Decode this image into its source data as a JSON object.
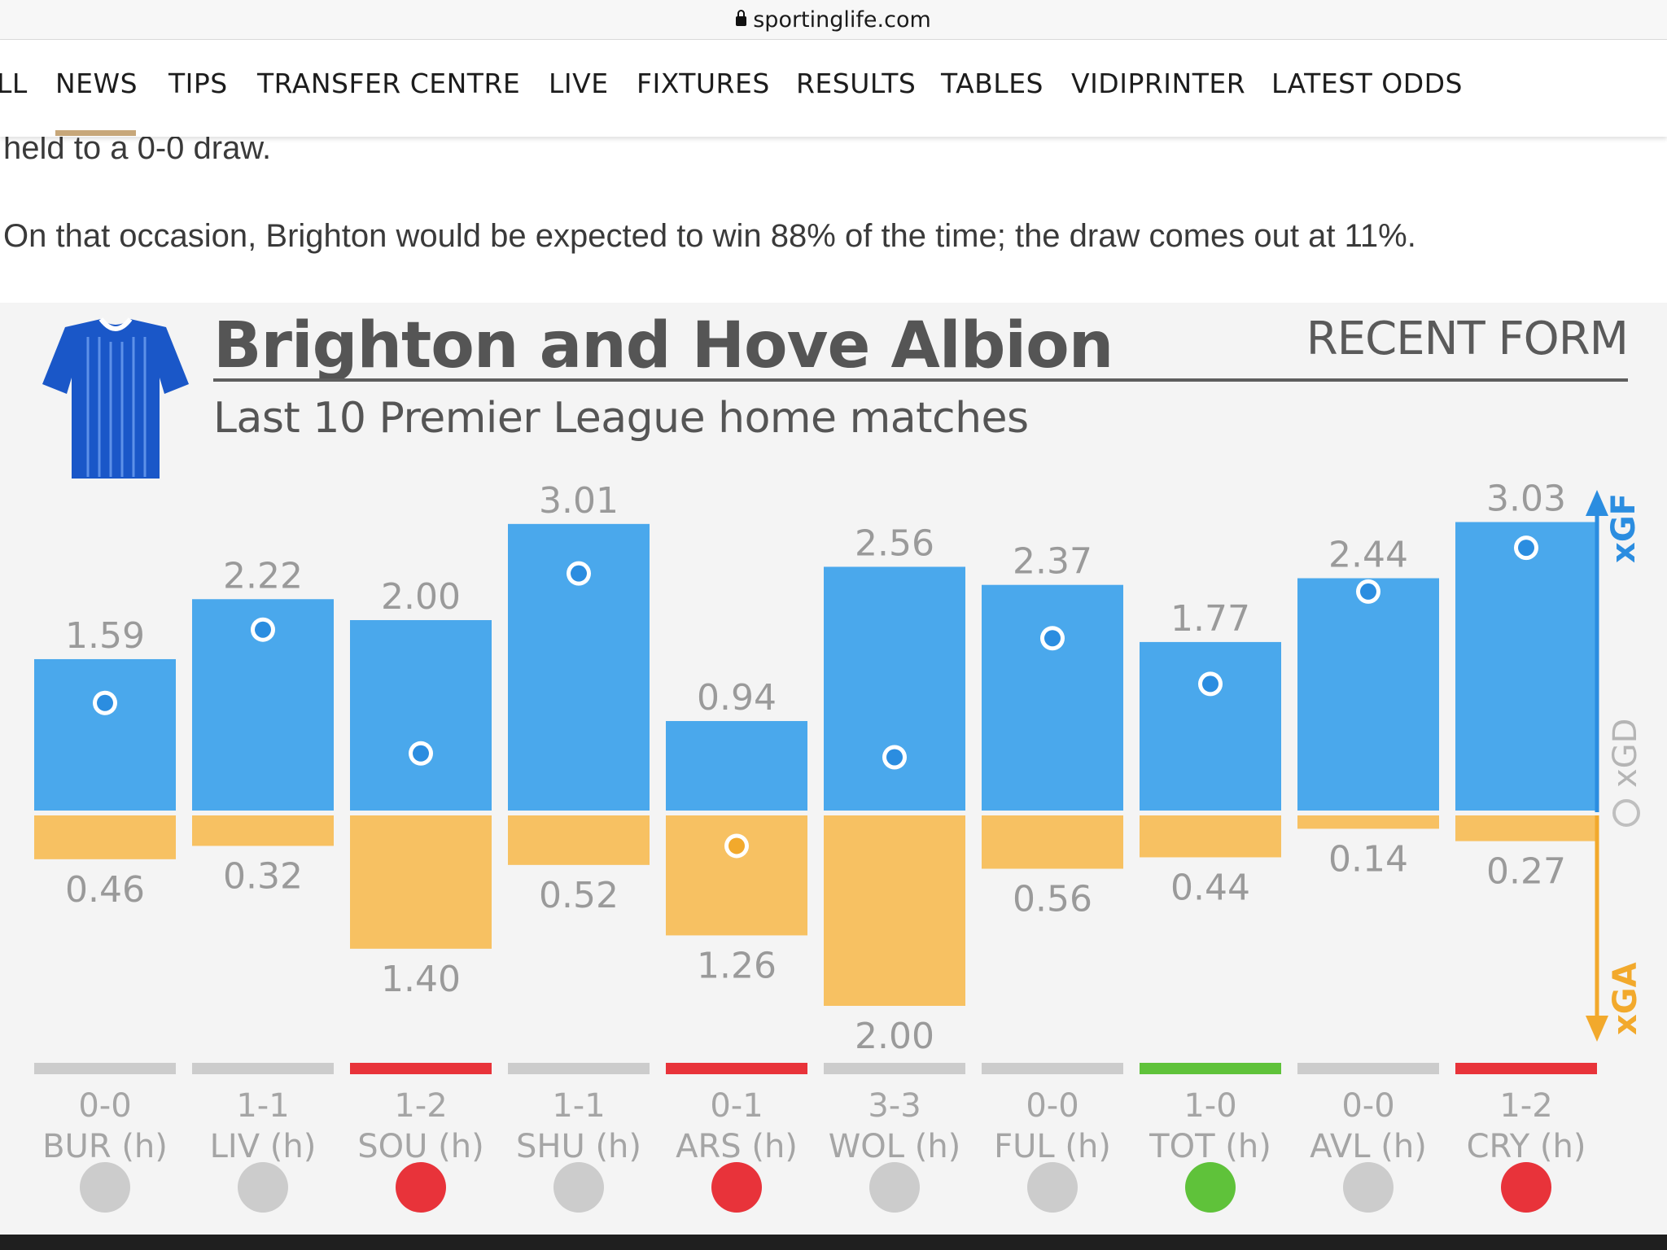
{
  "browser": {
    "url": "sportinglife.com"
  },
  "nav": {
    "items": [
      {
        "label": "LL"
      },
      {
        "label": "NEWS"
      },
      {
        "label": "TIPS"
      },
      {
        "label": "TRANSFER CENTRE"
      },
      {
        "label": "LIVE"
      },
      {
        "label": "FIXTURES"
      },
      {
        "label": "RESULTS"
      },
      {
        "label": "TABLES"
      },
      {
        "label": "VIDIPRINTER"
      },
      {
        "label": "LATEST ODDS"
      }
    ],
    "active": "NEWS"
  },
  "article": {
    "partial_line": "held to a 0-0 draw.",
    "paragraph": "On that occasion, Brighton would be expected to win 88% of the time; the draw comes out at 11%."
  },
  "infographic": {
    "title": "Brighton and Hove Albion",
    "badge": "RECENT FORM",
    "subtitle": "Last 10 Premier League home matches",
    "axis_labels": {
      "xgf": "xGF",
      "xgd": "xGD",
      "xga": "xGA"
    }
  },
  "chart_data": {
    "type": "bar",
    "title": "Brighton and Hove Albion",
    "subtitle": "Last 10 Premier League home matches",
    "categories": [
      "BUR (h)",
      "LIV (h)",
      "SOU (h)",
      "SHU (h)",
      "ARS (h)",
      "WOL (h)",
      "FUL (h)",
      "TOT (h)",
      "AVL (h)",
      "CRY (h)"
    ],
    "scores": [
      "0-0",
      "1-1",
      "1-2",
      "1-1",
      "0-1",
      "3-3",
      "0-0",
      "1-0",
      "0-0",
      "1-2"
    ],
    "results": [
      "D",
      "D",
      "L",
      "D",
      "L",
      "D",
      "D",
      "W",
      "D",
      "L"
    ],
    "series": [
      {
        "name": "xGF",
        "values": [
          1.59,
          2.22,
          2.0,
          3.01,
          0.94,
          2.56,
          2.37,
          1.77,
          2.44,
          3.03
        ]
      },
      {
        "name": "xGA",
        "values": [
          0.46,
          0.32,
          1.4,
          0.52,
          1.26,
          2.0,
          0.56,
          0.44,
          0.14,
          0.27
        ]
      },
      {
        "name": "xGD",
        "values": [
          1.13,
          1.9,
          0.6,
          2.49,
          -0.32,
          0.56,
          1.81,
          1.33,
          2.3,
          2.76
        ]
      }
    ],
    "colors": {
      "xgf": "#4aa8ec",
      "xga": "#f7c162",
      "draw": "#cccccc",
      "loss": "#e8333a",
      "win": "#5fc23a",
      "axis_xgf": "#2b8de0",
      "axis_xga": "#f2a92c"
    }
  }
}
